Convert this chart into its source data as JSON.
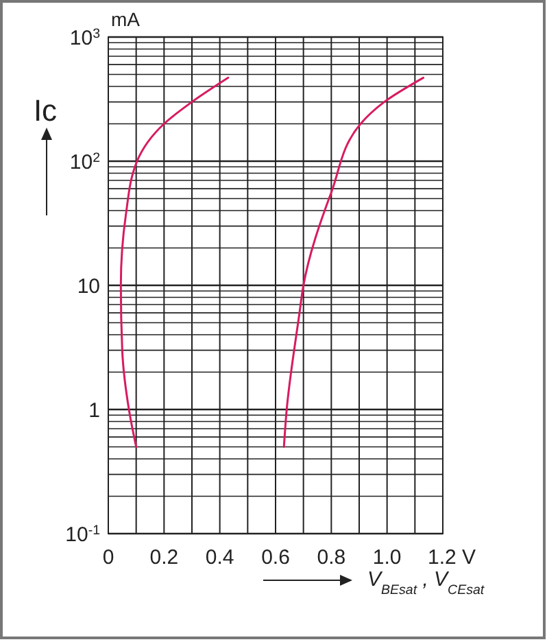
{
  "chart_data": {
    "type": "line",
    "ylabel": "Ic",
    "xlabel": "V$_{BEsat}$ , V$_{CEsat}$",
    "annotations": [
      "mA"
    ],
    "xlim": [
      0,
      1.2
    ],
    "xticks": [
      0,
      0.2,
      0.4,
      0.6,
      0.8,
      {
        "value": 1,
        "label": "1.0"
      },
      {
        "value": 1.2,
        "label": "1.2 V"
      }
    ],
    "ylim": [
      0.1,
      1000
    ],
    "yticks": [
      {
        "value": 0.1,
        "label": "10$^{-1}$"
      },
      1,
      10,
      {
        "value": 100,
        "label": "10$^{2}$"
      },
      {
        "value": 1000,
        "label": "10$^{3}$"
      }
    ],
    "log": "y",
    "grid": true,
    "marker": "none",
    "line_style": "solid",
    "series": [
      {
        "color": "#d81b60",
        "x": [
          0.1,
          0.074,
          0.05,
          0.045,
          0.063,
          0.103,
          0.2,
          0.3,
          0.43
        ],
        "values": [
          0.5,
          1,
          3,
          10,
          37,
          100,
          200,
          300,
          470
        ]
      },
      {
        "color": "#d81b60",
        "x": [
          0.63,
          0.64,
          0.685,
          0.7,
          0.8,
          0.905,
          0.99,
          1.13
        ],
        "values": [
          0.5,
          1,
          5.8,
          10,
          56,
          200,
          300,
          470
        ]
      }
    ]
  }
}
